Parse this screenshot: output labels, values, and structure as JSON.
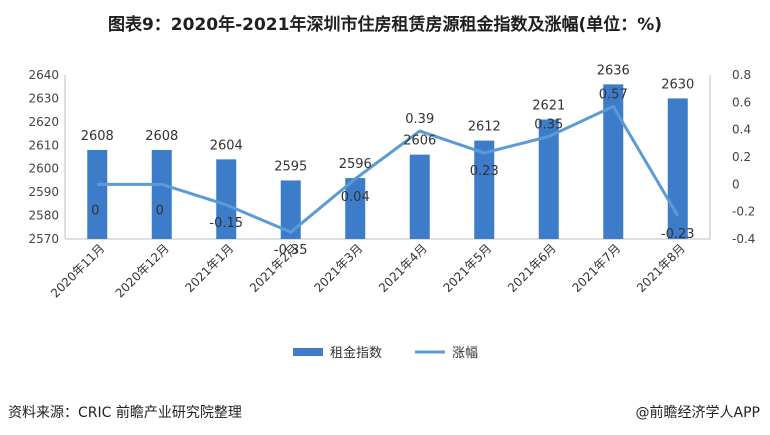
{
  "title": "图表9：2020年-2021年深圳市住房租赁房源租金指数及涨幅(单位：%)",
  "footer": {
    "source": "资料来源：CRIC 前瞻产业研究院整理",
    "credit": "@前瞻经济学人APP"
  },
  "colors": {
    "bar": "#3d7cc9",
    "line": "#5b9bd5"
  },
  "chart_data": {
    "type": "bar",
    "title": "图表9：2020年-2021年深圳市住房租赁房源租金指数及涨幅(单位：%)",
    "categories": [
      "2020年11月",
      "2020年12月",
      "2021年1月",
      "2021年2月",
      "2021年3月",
      "2021年4月",
      "2021年5月",
      "2021年6月",
      "2021年7月",
      "2021年8月"
    ],
    "series": [
      {
        "name": "租金指数",
        "type": "bar",
        "axis": "left",
        "values": [
          2608,
          2608,
          2604,
          2595,
          2596,
          2606,
          2612,
          2621,
          2636,
          2630
        ]
      },
      {
        "name": "涨幅",
        "type": "line",
        "axis": "right",
        "values": [
          0,
          0,
          -0.15,
          -0.35,
          0.04,
          0.39,
          0.23,
          0.35,
          0.57,
          -0.23
        ]
      }
    ],
    "ylim_left": [
      2570,
      2640
    ],
    "yticks_left": [
      2570,
      2580,
      2590,
      2600,
      2610,
      2620,
      2630,
      2640
    ],
    "ylim_right": [
      -0.4,
      0.8
    ],
    "yticks_right": [
      -0.4,
      -0.2,
      0,
      0.2,
      0.4,
      0.6,
      0.8
    ],
    "legend_position": "bottom",
    "grid": false
  }
}
